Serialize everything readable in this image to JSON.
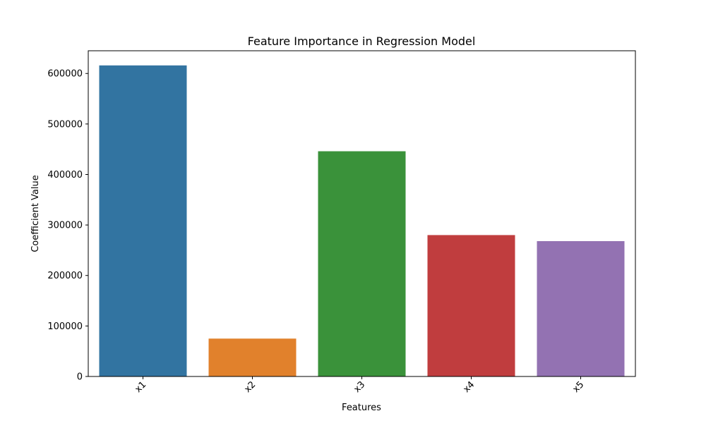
{
  "chart_data": {
    "type": "bar",
    "title": "Feature Importance in Regression Model",
    "xlabel": "Features",
    "ylabel": "Coefficient Value",
    "categories": [
      "x1",
      "x2",
      "x3",
      "x4",
      "x5"
    ],
    "values": [
      616000,
      75000,
      446000,
      280000,
      268000
    ],
    "ylim": [
      0,
      645000
    ],
    "yticks": [
      0,
      100000,
      200000,
      300000,
      400000,
      500000,
      600000
    ],
    "ytick_labels": [
      "0",
      "100000",
      "200000",
      "300000",
      "400000",
      "500000",
      "600000"
    ],
    "colors": [
      "#3274a1",
      "#e1812c",
      "#3a923a",
      "#c03d3e",
      "#9372b2"
    ],
    "grid": false,
    "legend": "none"
  }
}
